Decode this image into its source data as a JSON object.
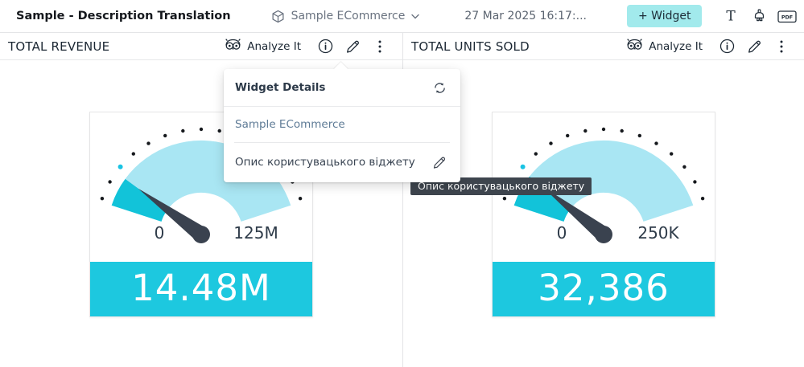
{
  "topbar": {
    "title": "Sample - Description Translation",
    "datasource": "Sample ECommerce",
    "datetime": "27 Mar 2025 16:17:...",
    "widget_button": "+ Widget",
    "pdf_badge": "PDF",
    "text_tool": "T"
  },
  "widgets": [
    {
      "title": "TOTAL REVENUE",
      "analyze": "Analyze It"
    },
    {
      "title": "TOTAL UNITS SOLD",
      "analyze": "Analyze It"
    }
  ],
  "popover": {
    "title": "Widget Details",
    "datasource": "Sample ECommerce",
    "description": "Опис користувацького віджету"
  },
  "tooltip": "Опис користувацького віджету",
  "colors": {
    "accent_banner": "#1DC8DF",
    "gauge_fill": "#12C3D9",
    "gauge_arc": "#A9E6F3",
    "needle": "#3A424F",
    "tick_dot": "#16191D",
    "value_marker": "#19C3E3",
    "scale_label": "#2E3B49",
    "widget_button_bg": "#A2EAEC"
  },
  "chart_data": [
    {
      "type": "gauge",
      "widget": "TOTAL REVENUE",
      "min": 0,
      "max": 125000000,
      "min_label": "0",
      "max_label": "125M",
      "value": 14480000,
      "value_label": "14.48M",
      "scale_start_angle_deg": 160,
      "scale_end_angle_deg": 20
    },
    {
      "type": "gauge",
      "widget": "TOTAL UNITS SOLD",
      "min": 0,
      "max": 250000,
      "min_label": "0",
      "max_label": "250K",
      "value": 32386,
      "value_label": "32,386",
      "scale_start_angle_deg": 160,
      "scale_end_angle_deg": 20
    }
  ]
}
